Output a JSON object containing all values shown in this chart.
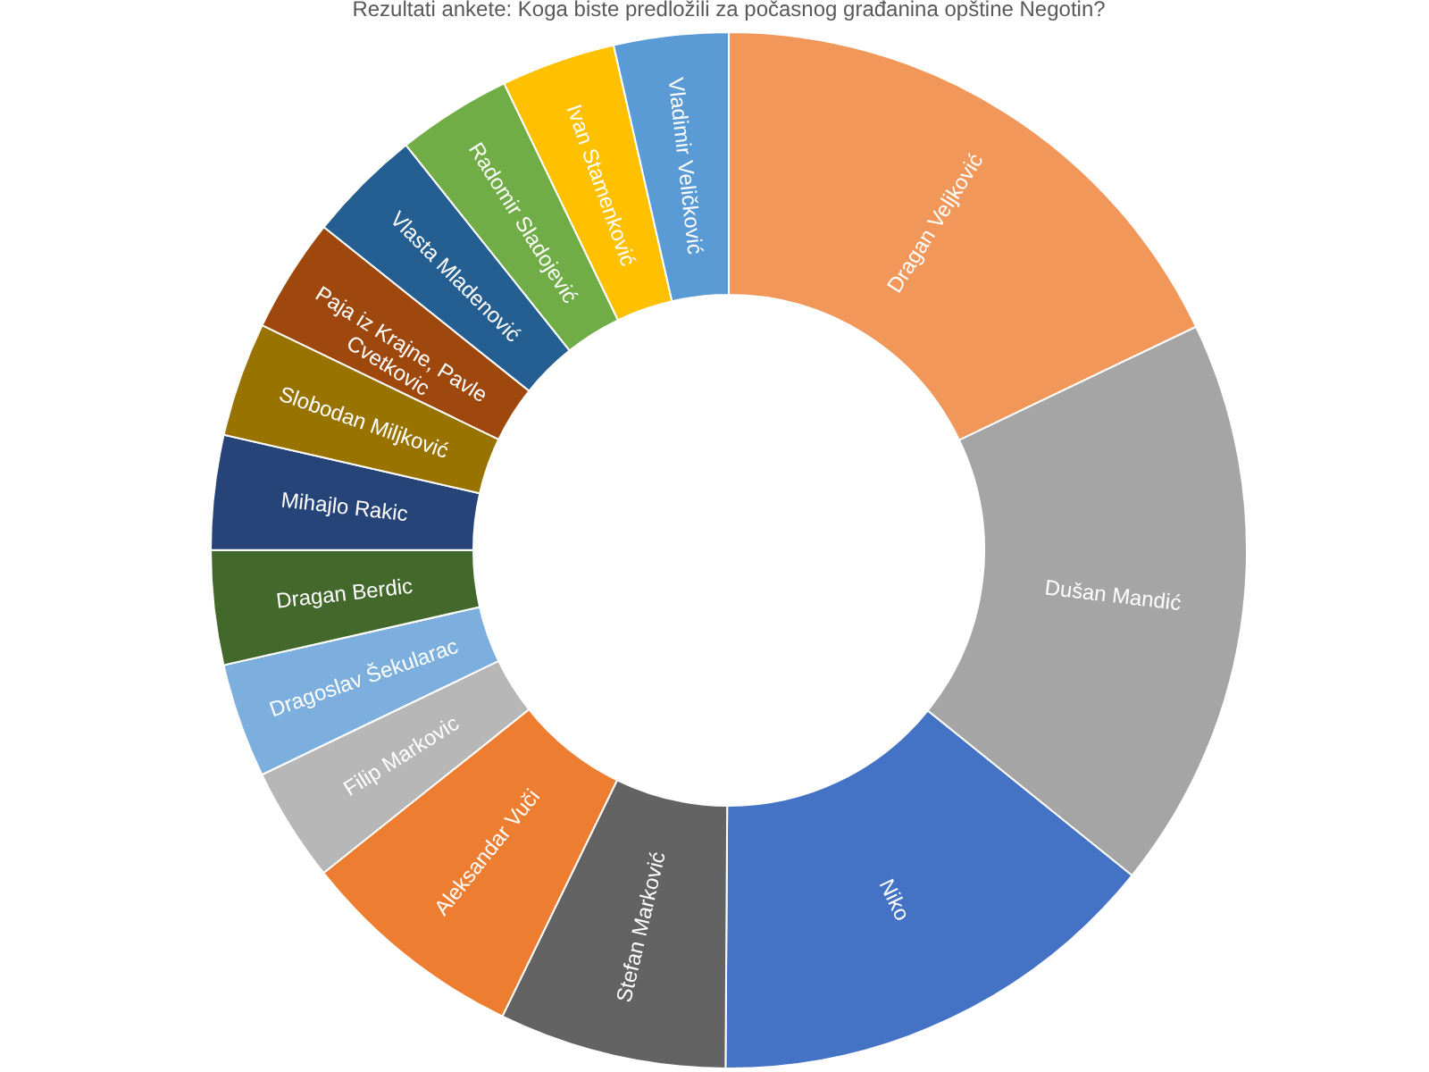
{
  "chart_data": {
    "type": "donut",
    "title": "Rezultati ankete: Koga biste predložili za počasnog građanina opštine Negotin?",
    "categories": [
      "Dragan Veljković",
      "Dušan Mandić",
      "Niko",
      "Stefan Marković",
      "Aleksandar Vuči",
      "Filip Markovic",
      "Dragoslav Šekularac",
      "Dragan Berdic",
      "Mihajlo Rakic",
      "Slobodan Miljković",
      "Paja iz Krajne, Pavle Cvetkovic",
      "Vlasta Mladenović",
      "Radomir Sladojević",
      "Ivan Stamenković",
      "Vladimir Veličković"
    ],
    "values": [
      17.9,
      17.9,
      14.3,
      7.1,
      7.1,
      3.57,
      3.57,
      3.57,
      3.57,
      3.57,
      3.57,
      3.57,
      3.57,
      3.57,
      3.57
    ],
    "colors": [
      "#f1975a",
      "#a5a5a5",
      "#4472c4",
      "#636363",
      "#ed7d31",
      "#b7b7b7",
      "#7cafdd",
      "#43682b",
      "#264478",
      "#997300",
      "#9e480e",
      "#255e91",
      "#70ad47",
      "#ffc000",
      "#5b9bd5"
    ],
    "legend": false
  }
}
